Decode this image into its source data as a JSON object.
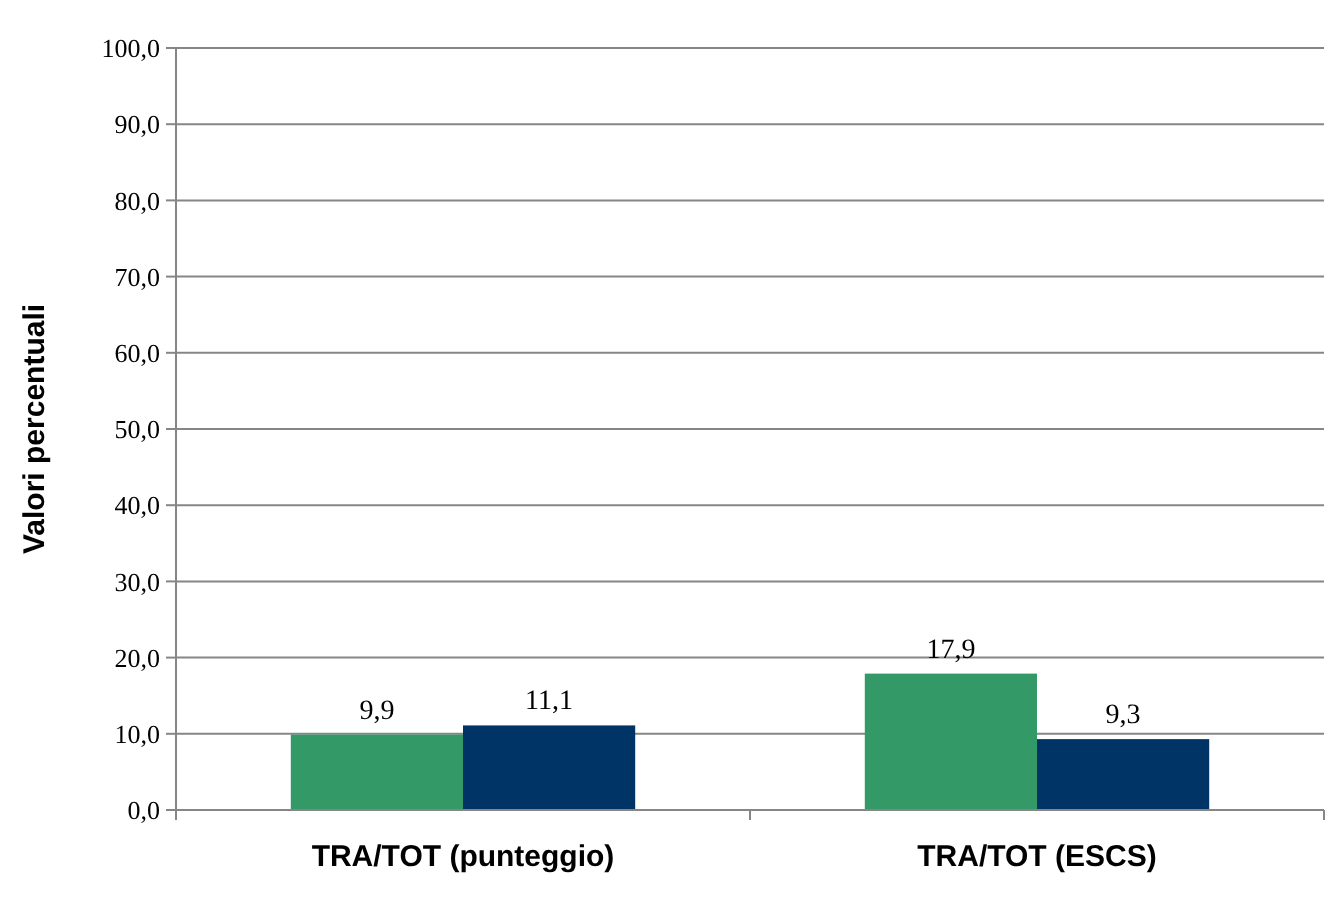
{
  "chart_data": {
    "type": "bar",
    "ylabel": "Valori percentuali",
    "categories": [
      "TRA/TOT (punteggio)",
      "TRA/TOT (ESCS)"
    ],
    "series": [
      {
        "color": "#339966",
        "values": [
          9.9,
          17.9
        ],
        "value_labels": [
          "9,9",
          "17,9"
        ]
      },
      {
        "color": "#003366",
        "values": [
          11.1,
          9.3
        ],
        "value_labels": [
          "11,1",
          "9,3"
        ]
      }
    ],
    "ylim": [
      0,
      100
    ],
    "yticks": [
      {
        "value": 0,
        "label": "0,0"
      },
      {
        "value": 10,
        "label": "10,0"
      },
      {
        "value": 20,
        "label": "20,0"
      },
      {
        "value": 30,
        "label": "30,0"
      },
      {
        "value": 40,
        "label": "40,0"
      },
      {
        "value": 50,
        "label": "50,0"
      },
      {
        "value": 60,
        "label": "60,0"
      },
      {
        "value": 70,
        "label": "70,0"
      },
      {
        "value": 80,
        "label": "80,0"
      },
      {
        "value": 90,
        "label": "90,0"
      },
      {
        "value": 100,
        "label": "100,0"
      }
    ],
    "grid": "y"
  }
}
